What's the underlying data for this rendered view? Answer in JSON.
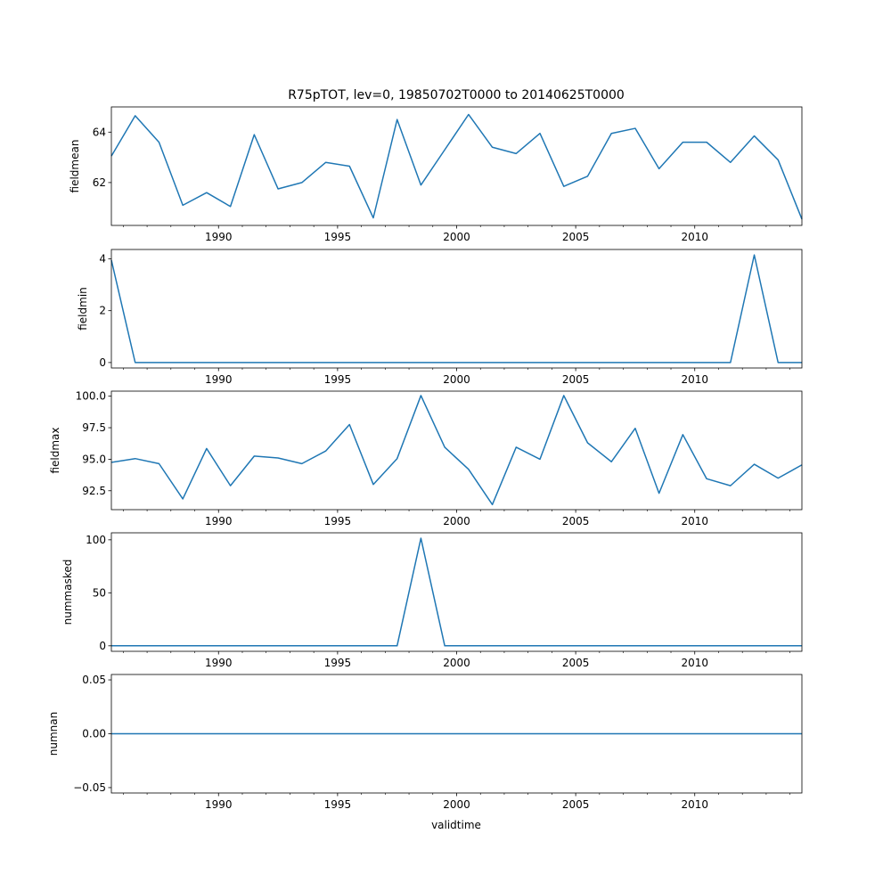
{
  "chart_data": {
    "type": "line",
    "title": "R75pTOT, lev=0, 19850702T0000 to 20140625T0000",
    "xlabel": "validtime",
    "line_color": "#1f77b4",
    "xlim": [
      1985.5,
      2014.5
    ],
    "x_major_ticks": [
      1990,
      1995,
      2000,
      2005,
      2010
    ],
    "x_tick_labels": [
      "1990",
      "1995",
      "2000",
      "2005",
      "2010"
    ],
    "x": [
      1985.5,
      1986.5,
      1987.5,
      1988.5,
      1989.5,
      1990.5,
      1991.5,
      1992.5,
      1993.5,
      1994.5,
      1995.5,
      1996.5,
      1997.5,
      1998.5,
      1999.5,
      2000.5,
      2001.5,
      2002.5,
      2003.5,
      2004.5,
      2005.5,
      2006.5,
      2007.5,
      2008.5,
      2009.5,
      2010.5,
      2011.5,
      2012.5,
      2013.5,
      2014.5
    ],
    "panels": [
      {
        "name": "fieldmean",
        "ylabel": "fieldmean",
        "ylim": [
          60.3,
          65.0
        ],
        "yticks": [
          62,
          64
        ],
        "ytick_labels": [
          "62",
          "64"
        ],
        "values": [
          63.05,
          64.65,
          63.6,
          61.1,
          61.6,
          61.05,
          63.9,
          61.75,
          62.0,
          62.8,
          62.65,
          60.6,
          64.5,
          61.9,
          63.3,
          64.7,
          63.4,
          63.15,
          63.95,
          61.85,
          62.25,
          63.95,
          64.15,
          62.55,
          63.6,
          63.6,
          62.8,
          63.85,
          62.9,
          60.55
        ]
      },
      {
        "name": "fieldmin",
        "ylabel": "fieldmin",
        "ylim": [
          -0.21,
          4.36
        ],
        "yticks": [
          0,
          2,
          4
        ],
        "ytick_labels": [
          "0",
          "2",
          "4"
        ],
        "values": [
          3.95,
          0,
          0,
          0,
          0,
          0,
          0,
          0,
          0,
          0,
          0,
          0,
          0,
          0,
          0,
          0,
          0,
          0,
          0,
          0,
          0,
          0,
          0,
          0,
          0,
          0,
          0,
          4.15,
          0,
          0
        ]
      },
      {
        "name": "fieldmax",
        "ylabel": "fieldmax",
        "ylim": [
          91.0,
          100.4
        ],
        "yticks": [
          92.5,
          95.0,
          97.5,
          100.0
        ],
        "ytick_labels": [
          "92.5",
          "95.0",
          "97.5",
          "100.0"
        ],
        "values": [
          94.75,
          95.05,
          94.65,
          91.85,
          95.85,
          92.9,
          95.25,
          95.1,
          94.65,
          95.65,
          97.75,
          93.0,
          95.05,
          100.05,
          95.95,
          94.2,
          91.4,
          95.95,
          95.0,
          100.05,
          96.3,
          94.8,
          97.45,
          92.3,
          96.95,
          93.45,
          92.9,
          94.6,
          93.5,
          94.55
        ]
      },
      {
        "name": "nummasked",
        "ylabel": "nummasked",
        "ylim": [
          -5.2,
          106.6
        ],
        "yticks": [
          0,
          50,
          100
        ],
        "ytick_labels": [
          "0",
          "50",
          "100"
        ],
        "values": [
          0,
          0,
          0,
          0,
          0,
          0,
          0,
          0,
          0,
          0,
          0,
          0,
          0,
          101.5,
          0,
          0,
          0,
          0,
          0,
          0,
          0,
          0,
          0,
          0,
          0,
          0,
          0,
          0,
          0,
          0
        ]
      },
      {
        "name": "numnan",
        "ylabel": "numnan",
        "ylim": [
          -0.055,
          0.055
        ],
        "yticks": [
          -0.05,
          0.0,
          0.05
        ],
        "ytick_labels": [
          "−0.05",
          "0.00",
          "0.05"
        ],
        "values": [
          0,
          0,
          0,
          0,
          0,
          0,
          0,
          0,
          0,
          0,
          0,
          0,
          0,
          0,
          0,
          0,
          0,
          0,
          0,
          0,
          0,
          0,
          0,
          0,
          0,
          0,
          0,
          0,
          0,
          0
        ]
      }
    ]
  }
}
